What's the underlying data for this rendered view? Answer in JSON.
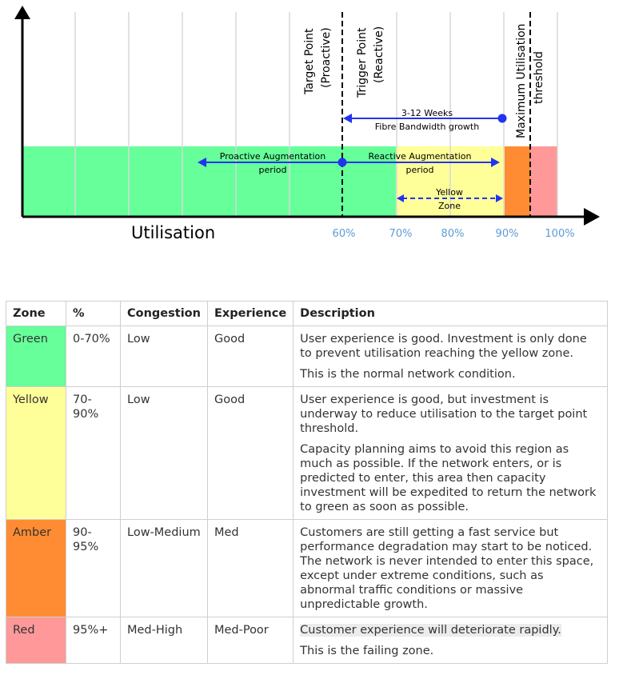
{
  "diagram": {
    "axis_label": "Utilisation",
    "tick_labels": [
      "60%",
      "70%",
      "80%",
      "90%",
      "100%"
    ],
    "target_point": {
      "line1": "Target Point",
      "line2": "(Proactive)"
    },
    "trigger_point": {
      "line1": "Trigger Point",
      "line2": "(Reactive)"
    },
    "max_threshold": {
      "line1": "Maximum Utilisation",
      "line2": "threshold"
    },
    "fibre_growth": {
      "line1": "3-12 Weeks",
      "line2": "Fibre Bandwidth growth"
    },
    "proactive_period": {
      "line1": "Proactive Augmentation",
      "line2": "period"
    },
    "reactive_period": {
      "line1": "Reactive Augmentation",
      "line2": "period"
    },
    "yellow_zone": {
      "line1": "Yellow",
      "line2": "Zone"
    },
    "colors": {
      "green": "#66ff99",
      "yellow": "#ffff99",
      "amber": "#ff8c33",
      "red": "#ff9999",
      "arrow_blue": "#2233ee",
      "tick_blue": "#5b9bd5"
    }
  },
  "table": {
    "headers": [
      "Zone",
      "%",
      "Congestion",
      "Experience",
      "Description"
    ],
    "rows": [
      {
        "zone": "Green",
        "pct": "0-70%",
        "congestion": "Low",
        "experience": "Good",
        "desc1": "User experience is good. Investment is only done to prevent utilisation reaching the yellow zone.",
        "desc2": "This is the normal network condition.",
        "color": "#66ff99"
      },
      {
        "zone": "Yellow",
        "pct": "70-90%",
        "congestion": "Low",
        "experience": "Good",
        "desc1": "User experience is good, but investment is underway to reduce utilisation to the target point threshold.",
        "desc2": "Capacity planning aims to avoid this region as much as possible. If the network enters, or is predicted to enter, this area then capacity investment will be expedited to return the network to green as soon as possible.",
        "color": "#ffff99"
      },
      {
        "zone": "Amber",
        "pct": "90-95%",
        "congestion": "Low-Medium",
        "experience": "Med",
        "desc1": "Customers are still getting a fast service but performance degradation may start to be noticed. The network is never intended to enter this space, except under extreme conditions, such as abnormal traffic conditions or massive unpredictable growth.",
        "color": "#ff8c33"
      },
      {
        "zone": "Red",
        "pct": "95%+",
        "congestion": "Med-High",
        "experience": "Med-Poor",
        "desc1": "Customer experience will deteriorate rapidly.",
        "desc2": "This is the failing zone.",
        "color": "#ff9999"
      }
    ]
  }
}
